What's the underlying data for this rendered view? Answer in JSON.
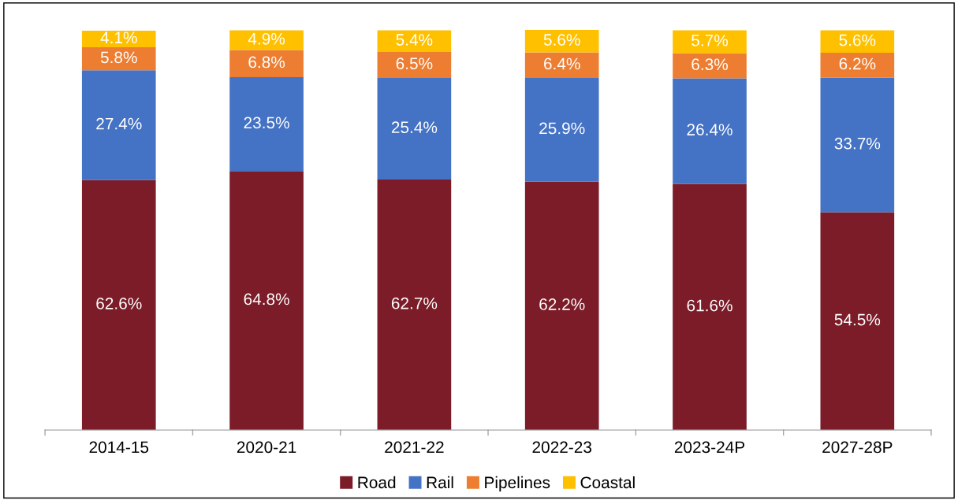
{
  "chart_data": {
    "type": "bar",
    "stacked": true,
    "data_labels": true,
    "legend": "bottom",
    "grid": false,
    "categories": [
      "2014-15",
      "2020-21",
      "2021-22",
      "2022-23",
      "2023-24P",
      "2027-28P"
    ],
    "series": [
      {
        "name": "Road",
        "color": "#7b1c28",
        "values": [
          62.6,
          64.8,
          62.7,
          62.2,
          61.6,
          54.5
        ],
        "value_labels": [
          "62.6%",
          "64.8%",
          "62.7%",
          "62.2%",
          "61.6%",
          "54.5%"
        ]
      },
      {
        "name": "Rail",
        "color": "#4472c4",
        "values": [
          27.4,
          23.5,
          25.4,
          25.9,
          26.4,
          33.7
        ],
        "value_labels": [
          "27.4%",
          "23.5%",
          "25.4%",
          "25.9%",
          "26.4%",
          "33.7%"
        ]
      },
      {
        "name": "Pipelines",
        "color": "#ed7d31",
        "values": [
          5.8,
          6.8,
          6.5,
          6.4,
          6.3,
          6.2
        ],
        "value_labels": [
          "5.8%",
          "6.8%",
          "6.5%",
          "6.4%",
          "6.3%",
          "6.2%"
        ]
      },
      {
        "name": "Coastal",
        "color": "#ffc000",
        "values": [
          4.1,
          4.9,
          5.4,
          5.6,
          5.7,
          5.6
        ],
        "value_labels": [
          "4.1%",
          "4.9%",
          "5.4%",
          "5.6%",
          "5.7%",
          "5.6%"
        ]
      }
    ]
  }
}
